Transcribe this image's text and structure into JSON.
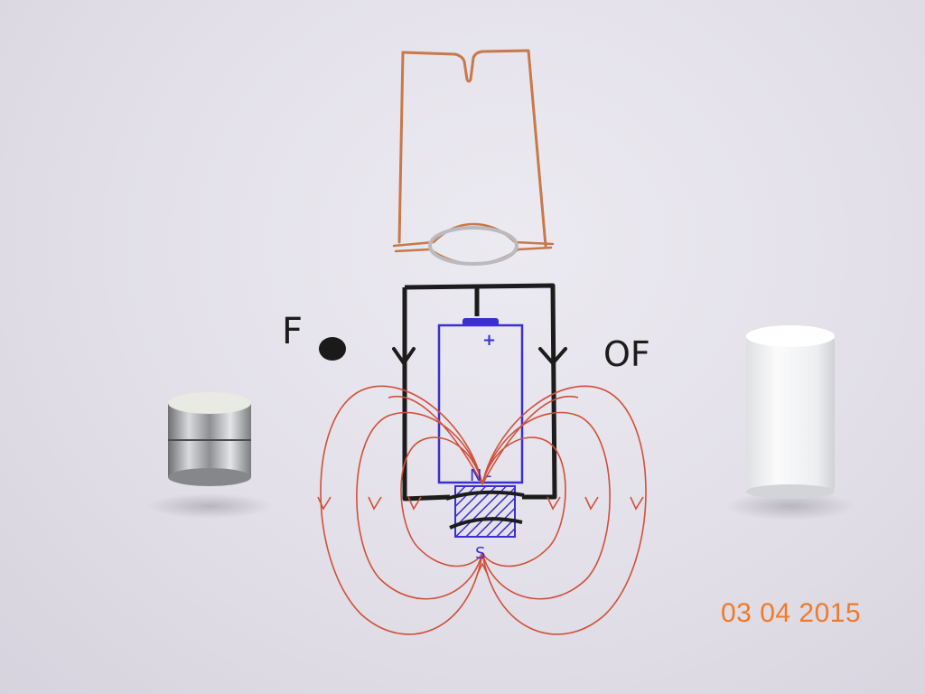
{
  "drawing": {
    "label_f_left": "F",
    "label_of_right": "OF",
    "battery_plus": "+",
    "magnet_north": "N",
    "magnet_minus": "-",
    "magnet_south": "S"
  },
  "date_stamp": "03 04 2015",
  "colors": {
    "paper": "#e6e4ec",
    "copper_wire": "#c8784a",
    "black_ink": "#1c1c1c",
    "blue_ink": "#3b2fd0",
    "red_ink": "#d0503a",
    "stamp": "#f07a2a"
  }
}
